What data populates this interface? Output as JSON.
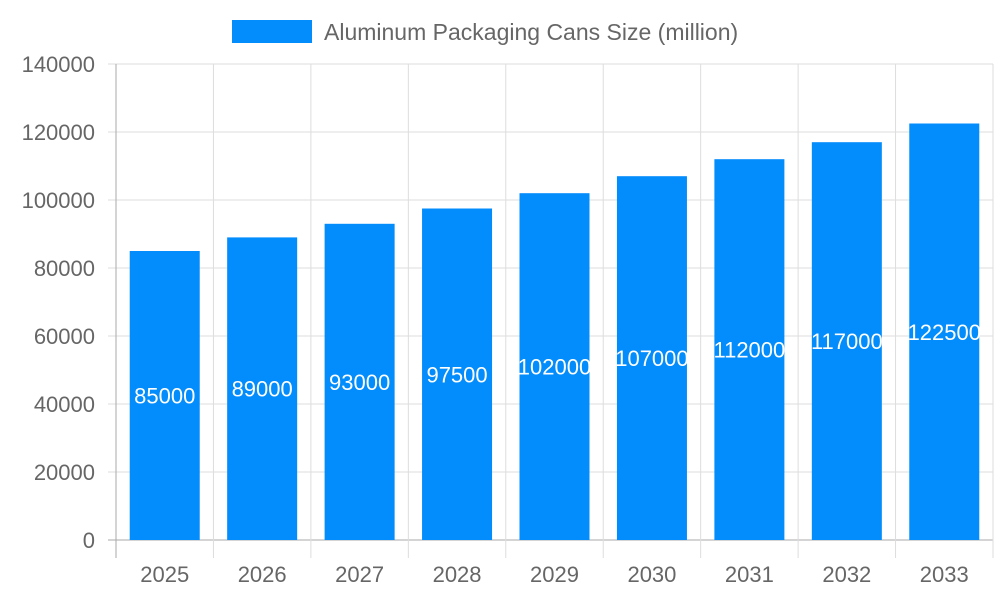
{
  "chart_data": {
    "type": "bar",
    "categories": [
      "2025",
      "2026",
      "2027",
      "2028",
      "2029",
      "2030",
      "2031",
      "2032",
      "2033"
    ],
    "series": [
      {
        "name": "Aluminum Packaging Cans Size (million)",
        "values": [
          85000,
          89000,
          93000,
          97500,
          102000,
          107000,
          112000,
          117000,
          122500
        ],
        "color": "#038cfc"
      }
    ],
    "ylim": [
      0,
      140000
    ],
    "yticks": [
      "0",
      "20000",
      "40000",
      "60000",
      "80000",
      "100000",
      "120000",
      "140000"
    ],
    "grid": true,
    "legend": "top-center",
    "data_labels": true
  }
}
